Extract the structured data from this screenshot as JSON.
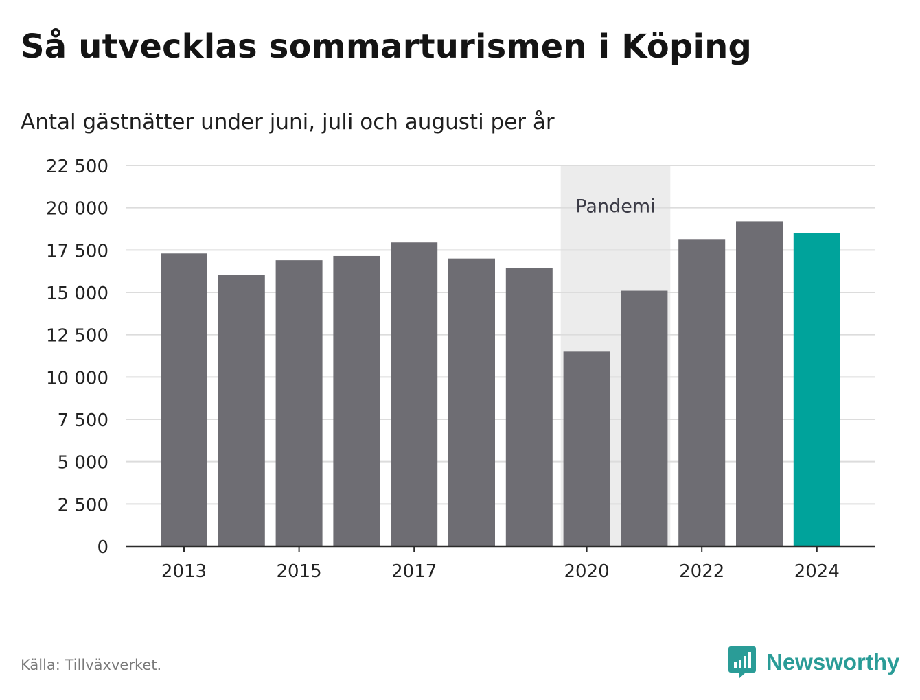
{
  "title": "Så utvecklas sommarturismen i Köping",
  "subtitle": "Antal gästnätter under juni, juli och augusti per år",
  "source": "Källa: Tillväxverket.",
  "brand": {
    "name": "Newsworthy",
    "icon": "newsworthy-logo-icon",
    "color": "#2a9c97"
  },
  "chart_data": {
    "type": "bar",
    "title": "Så utvecklas sommarturismen i Köping",
    "subtitle": "Antal gästnätter under juni, juli och augusti per år",
    "xlabel": "",
    "ylabel": "",
    "categories": [
      "2013",
      "2014",
      "2015",
      "2016",
      "2017",
      "2018",
      "2019",
      "2020",
      "2021",
      "2022",
      "2023",
      "2024"
    ],
    "values": [
      17300,
      16050,
      16900,
      17150,
      17950,
      17000,
      16450,
      11500,
      15100,
      18150,
      19200,
      18500
    ],
    "x_tick_labels": [
      "2013",
      "",
      "2015",
      "",
      "2017",
      "",
      "",
      "2020",
      "",
      "2022",
      "",
      "2024"
    ],
    "ylim": [
      0,
      22500
    ],
    "yticks": [
      0,
      2500,
      5000,
      7500,
      10000,
      12500,
      15000,
      17500,
      20000,
      22500
    ],
    "ytick_labels": [
      "0",
      "2 500",
      "5 000",
      "7 500",
      "10 000",
      "12 500",
      "15 000",
      "17 500",
      "20 000",
      "22 500"
    ],
    "grid": true,
    "colors": {
      "bar": "#6e6d73",
      "highlight": "#00a39b",
      "grid": "#dcdcdc",
      "band": "#ececec"
    },
    "highlight_category": "2024",
    "annotation": {
      "label": "Pandemi",
      "x_start": "2020",
      "x_end": "2021"
    }
  }
}
